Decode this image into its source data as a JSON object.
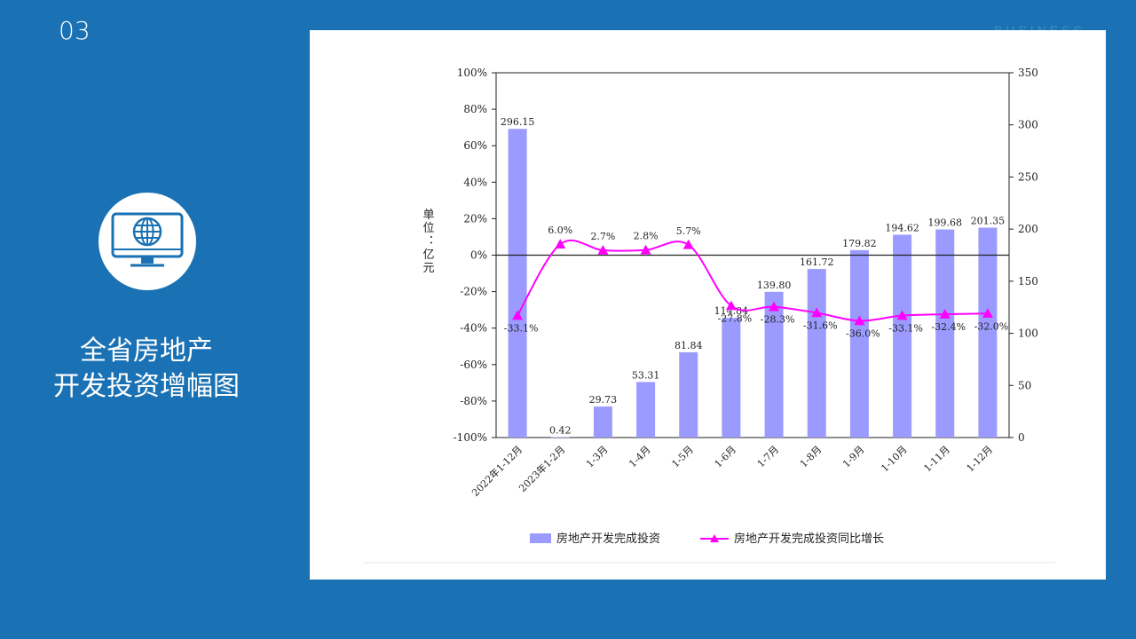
{
  "slide": {
    "number": "03",
    "watermark": "BUSINESS",
    "title_line1": "全省房地产",
    "title_line2": "开发投资增幅图",
    "icon": "globe-monitor-icon",
    "accent_color": "#1a72b4"
  },
  "chart_data": {
    "type": "bar+line",
    "categories": [
      "2022年1-12月",
      "2023年1-2月",
      "1-3月",
      "1-4月",
      "1-5月",
      "1-6月",
      "1-7月",
      "1-8月",
      "1-9月",
      "1-10月",
      "1-11月",
      "1-12月"
    ],
    "y_axis_label": "单位：亿元",
    "left_axis": {
      "ticks": [
        "100%",
        "80%",
        "60%",
        "40%",
        "20%",
        "0%",
        "-20%",
        "-40%",
        "-60%",
        "-80%",
        "-100%"
      ],
      "range": [
        -100,
        100
      ]
    },
    "right_axis": {
      "ticks": [
        "350",
        "300",
        "250",
        "200",
        "150",
        "100",
        "50",
        "0"
      ],
      "range": [
        0,
        350
      ]
    },
    "series": [
      {
        "name": "房地产开发完成投资",
        "type": "bar",
        "axis": "right",
        "color": "#9b9bff",
        "values": [
          296.15,
          0.42,
          29.73,
          53.31,
          81.84,
          114.84,
          139.8,
          161.72,
          179.82,
          194.62,
          199.68,
          201.35
        ],
        "labels": [
          "296.15",
          "0.42",
          "29.73",
          "53.31",
          "81.84",
          "114.84",
          "139.80",
          "161.72",
          "179.82",
          "194.62",
          "199.68",
          "201.35"
        ]
      },
      {
        "name": "房地产开发完成投资同比增长",
        "type": "line",
        "axis": "left",
        "color": "#ff00ff",
        "values": [
          -33.1,
          6.0,
          2.7,
          2.8,
          5.7,
          -27.8,
          -28.3,
          -31.6,
          -36.0,
          -33.1,
          -32.4,
          -32.0
        ],
        "labels": [
          "-33.1%",
          "6.0%",
          "2.7%",
          "2.8%",
          "5.7%",
          "-27.8%",
          "-28.3%",
          "-31.6%",
          "-36.0%",
          "-33.1%",
          "-32.4%",
          "-32.0%"
        ]
      }
    ]
  }
}
